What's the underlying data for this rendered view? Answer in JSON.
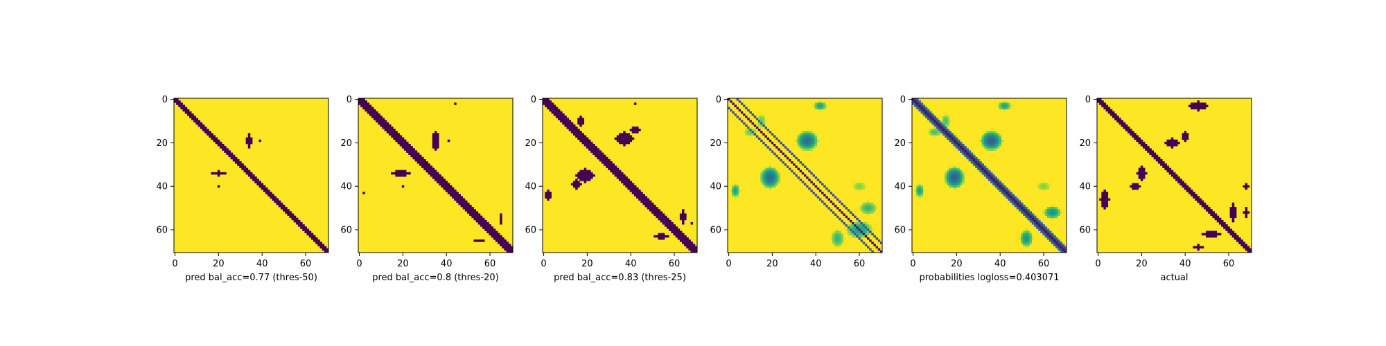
{
  "figure": {
    "panels_count": 6
  },
  "chart_data": [
    {
      "type": "heatmap",
      "colormap": "viridis",
      "binary": true,
      "size": 71,
      "xlim": [
        0,
        70
      ],
      "ylim": [
        70,
        0
      ],
      "xticks": [
        0,
        20,
        40,
        60
      ],
      "yticks": [
        0,
        20,
        40,
        60
      ],
      "title": "",
      "xlabel": "pred bal_acc=0.77 (thres-50)",
      "ylabel": "",
      "band_halfwidth": 1.5,
      "regions": [
        {
          "cx": 34,
          "cy": 19,
          "rx": 1.2,
          "ry": 3.0
        },
        {
          "cx": 39,
          "cy": 19,
          "rx": 0.6,
          "ry": 0.6
        },
        {
          "cx": 20,
          "cy": 34,
          "rx": 3.0,
          "ry": 1.0
        },
        {
          "cx": 20,
          "cy": 40,
          "rx": 0.6,
          "ry": 0.6
        }
      ]
    },
    {
      "type": "heatmap",
      "colormap": "viridis",
      "binary": true,
      "size": 71,
      "xlim": [
        0,
        70
      ],
      "ylim": [
        70,
        0
      ],
      "xticks": [
        0,
        20,
        40,
        60
      ],
      "yticks": [
        0,
        20,
        40,
        60
      ],
      "title": "",
      "xlabel": "pred bal_acc=0.8 (thres-20)",
      "ylabel": "",
      "band_halfwidth": 2.0,
      "regions": [
        {
          "cx": 35,
          "cy": 19,
          "rx": 1.8,
          "ry": 4.0
        },
        {
          "cx": 41,
          "cy": 19,
          "rx": 0.6,
          "ry": 0.6
        },
        {
          "cx": 19,
          "cy": 34,
          "rx": 4.0,
          "ry": 1.5
        },
        {
          "cx": 20,
          "cy": 40,
          "rx": 0.7,
          "ry": 0.7
        },
        {
          "cx": 2,
          "cy": 43,
          "rx": 0.6,
          "ry": 0.6
        },
        {
          "cx": 44,
          "cy": 2,
          "rx": 0.6,
          "ry": 0.6
        },
        {
          "cx": 65,
          "cy": 55,
          "rx": 0.8,
          "ry": 2.5
        },
        {
          "cx": 55,
          "cy": 65,
          "rx": 2.5,
          "ry": 0.8
        }
      ]
    },
    {
      "type": "heatmap",
      "colormap": "viridis",
      "binary": true,
      "size": 71,
      "xlim": [
        0,
        70
      ],
      "ylim": [
        70,
        0
      ],
      "xticks": [
        0,
        20,
        40,
        60
      ],
      "yticks": [
        0,
        20,
        40,
        60
      ],
      "title": "",
      "xlabel": "pred bal_acc=0.83 (thres-25)",
      "ylabel": "",
      "band_halfwidth": 2.5,
      "regions": [
        {
          "cx": 37,
          "cy": 18,
          "rx": 4.0,
          "ry": 3.0
        },
        {
          "cx": 42,
          "cy": 14,
          "rx": 2.5,
          "ry": 1.2
        },
        {
          "cx": 19,
          "cy": 35,
          "rx": 4.0,
          "ry": 3.0
        },
        {
          "cx": 15,
          "cy": 39,
          "rx": 2.0,
          "ry": 2.0
        },
        {
          "cx": 17,
          "cy": 10,
          "rx": 1.2,
          "ry": 2.0
        },
        {
          "cx": 42,
          "cy": 2,
          "rx": 0.8,
          "ry": 0.8
        },
        {
          "cx": 2,
          "cy": 44,
          "rx": 1.2,
          "ry": 2.0
        },
        {
          "cx": 64,
          "cy": 54,
          "rx": 1.2,
          "ry": 3.5
        },
        {
          "cx": 54,
          "cy": 63,
          "rx": 3.5,
          "ry": 1.2
        },
        {
          "cx": 68,
          "cy": 57,
          "rx": 0.8,
          "ry": 0.8
        }
      ]
    },
    {
      "type": "heatmap",
      "colormap": "viridis",
      "binary": false,
      "size": 71,
      "xlim": [
        0,
        70
      ],
      "ylim": [
        70,
        0
      ],
      "xticks": [
        0,
        20,
        40,
        60
      ],
      "yticks": [
        0,
        20,
        40,
        60
      ],
      "title": "",
      "xlabel": "",
      "ylabel": "",
      "diagonal_lines": [
        {
          "offset": -4,
          "width": 0.7,
          "value": 0.25
        },
        {
          "offset": 0,
          "width": 0.7,
          "value": 0.05
        },
        {
          "offset": 4,
          "width": 0.7,
          "value": 0.25
        }
      ],
      "regions": [
        {
          "cx": 36,
          "cy": 19,
          "rx": 5.0,
          "ry": 4.5,
          "value": 0.35
        },
        {
          "cx": 19,
          "cy": 36,
          "rx": 4.5,
          "ry": 5.0,
          "value": 0.35
        },
        {
          "cx": 42,
          "cy": 3,
          "rx": 3.0,
          "ry": 2.0,
          "value": 0.55
        },
        {
          "cx": 3,
          "cy": 42,
          "rx": 2.0,
          "ry": 3.0,
          "value": 0.55
        },
        {
          "cx": 60,
          "cy": 60,
          "rx": 6.0,
          "ry": 4.0,
          "value": 0.55
        },
        {
          "cx": 64,
          "cy": 50,
          "rx": 4.0,
          "ry": 3.0,
          "value": 0.65
        },
        {
          "cx": 50,
          "cy": 64,
          "rx": 3.0,
          "ry": 4.0,
          "value": 0.65
        },
        {
          "cx": 10,
          "cy": 15,
          "rx": 3.0,
          "ry": 2.0,
          "value": 0.75
        },
        {
          "cx": 15,
          "cy": 10,
          "rx": 2.0,
          "ry": 3.0,
          "value": 0.75
        },
        {
          "cx": 60,
          "cy": 40,
          "rx": 3.0,
          "ry": 2.0,
          "value": 0.8
        }
      ]
    },
    {
      "type": "heatmap",
      "colormap": "viridis",
      "binary": false,
      "size": 71,
      "xlim": [
        0,
        70
      ],
      "ylim": [
        70,
        0
      ],
      "xticks": [
        0,
        20,
        40,
        60
      ],
      "yticks": [
        0,
        20,
        40,
        60
      ],
      "title": "",
      "xlabel": "probabilities logloss=0.403071",
      "ylabel": "",
      "diagonal_lines": [
        {
          "offset": 0,
          "width": 2.2,
          "value": 0.05
        }
      ],
      "regions": [
        {
          "cx": 36,
          "cy": 19,
          "rx": 5.0,
          "ry": 4.5,
          "value": 0.3
        },
        {
          "cx": 19,
          "cy": 36,
          "rx": 4.5,
          "ry": 5.0,
          "value": 0.3
        },
        {
          "cx": 42,
          "cy": 3,
          "rx": 3.0,
          "ry": 2.0,
          "value": 0.55
        },
        {
          "cx": 3,
          "cy": 42,
          "rx": 2.0,
          "ry": 3.0,
          "value": 0.55
        },
        {
          "cx": 64,
          "cy": 52,
          "rx": 4.0,
          "ry": 3.0,
          "value": 0.5
        },
        {
          "cx": 52,
          "cy": 64,
          "rx": 3.0,
          "ry": 4.0,
          "value": 0.5
        },
        {
          "cx": 10,
          "cy": 15,
          "rx": 3.0,
          "ry": 2.0,
          "value": 0.7
        },
        {
          "cx": 15,
          "cy": 10,
          "rx": 2.0,
          "ry": 3.0,
          "value": 0.7
        },
        {
          "cx": 60,
          "cy": 40,
          "rx": 3.0,
          "ry": 2.0,
          "value": 0.8
        }
      ]
    },
    {
      "type": "heatmap",
      "colormap": "viridis",
      "binary": true,
      "size": 71,
      "xlim": [
        0,
        70
      ],
      "ylim": [
        70,
        0
      ],
      "xticks": [
        0,
        20,
        40,
        60
      ],
      "yticks": [
        0,
        20,
        40,
        60
      ],
      "title": "",
      "xlabel": "actual",
      "ylabel": "",
      "band_halfwidth": 1.0,
      "regions": [
        {
          "cx": 34,
          "cy": 20,
          "rx": 3.0,
          "ry": 2.0
        },
        {
          "cx": 40,
          "cy": 17,
          "rx": 1.5,
          "ry": 2.0
        },
        {
          "cx": 20,
          "cy": 34,
          "rx": 2.0,
          "ry": 3.0
        },
        {
          "cx": 17,
          "cy": 40,
          "rx": 2.0,
          "ry": 1.5
        },
        {
          "cx": 3,
          "cy": 46,
          "rx": 2.0,
          "ry": 4.0
        },
        {
          "cx": 46,
          "cy": 3,
          "rx": 4.0,
          "ry": 2.0
        },
        {
          "cx": 62,
          "cy": 52,
          "rx": 1.5,
          "ry": 4.0
        },
        {
          "cx": 52,
          "cy": 62,
          "rx": 4.0,
          "ry": 1.5
        },
        {
          "cx": 68,
          "cy": 52,
          "rx": 1.0,
          "ry": 2.0
        },
        {
          "cx": 46,
          "cy": 68,
          "rx": 2.0,
          "ry": 1.0
        },
        {
          "cx": 68,
          "cy": 40,
          "rx": 1.0,
          "ry": 1.0
        }
      ]
    }
  ]
}
